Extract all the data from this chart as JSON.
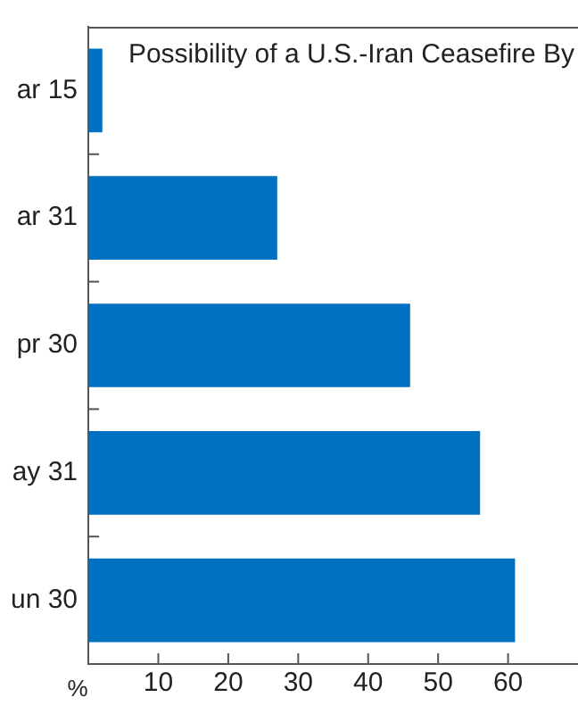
{
  "chart_data": {
    "type": "bar",
    "orientation": "horizontal",
    "title": "Possibility of a U.S.-Iran Ceasefire By",
    "xlabel": "%",
    "categories": [
      "ar 15",
      "ar 31",
      "pr 30",
      "ay 31",
      "un 30"
    ],
    "values": [
      2,
      27,
      46,
      56,
      61
    ],
    "color": "#0070c0",
    "xlim": [
      0,
      70
    ],
    "xticks": [
      10,
      20,
      30,
      40,
      50,
      60
    ],
    "grid": false,
    "legend": false
  }
}
